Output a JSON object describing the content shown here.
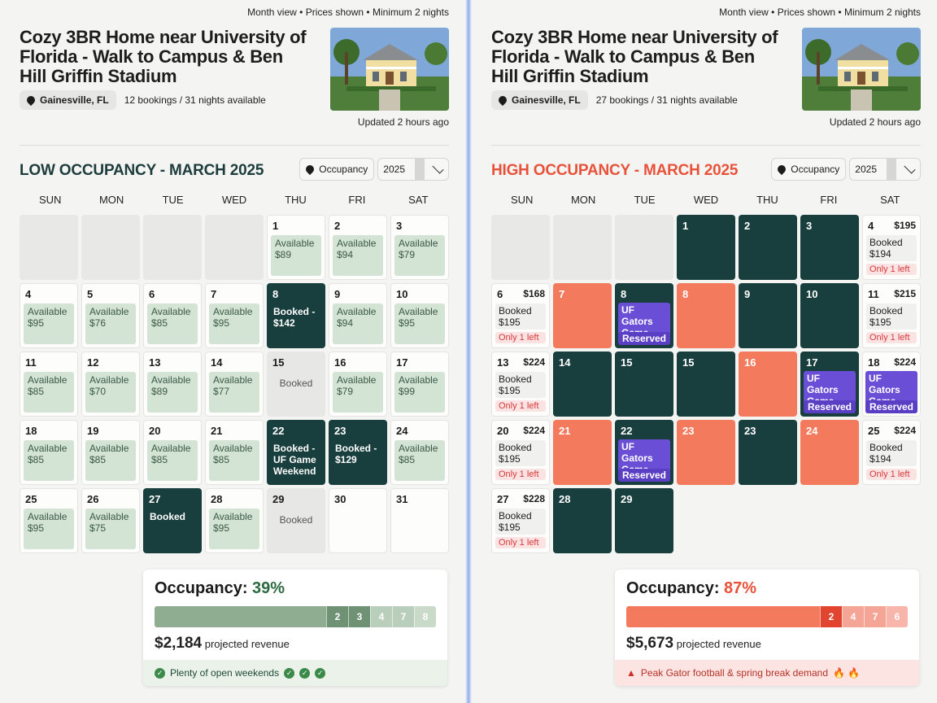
{
  "meta": {
    "view": "Month view",
    "prices": "Prices shown",
    "minimum": "Minimum 2 nights",
    "bullet": "•"
  },
  "listing": {
    "title": "Cozy 3BR Home near University of Florida - Walk to Campus & Ben Hill Griffin Stadium",
    "location": "Gainesville, FL",
    "updated": "Updated 2 hours ago"
  },
  "controls": {
    "occupancy_label": "Occupancy",
    "year": "2025"
  },
  "weekdays": [
    "SUN",
    "MON",
    "TUE",
    "WED",
    "THU",
    "FRI",
    "SAT"
  ],
  "left": {
    "bookings_summary": "12 bookings / 31 nights available",
    "section_title": "LOW OCCUPANCY - MARCH 2025",
    "cells": [
      {
        "kind": "empty"
      },
      {
        "kind": "empty"
      },
      {
        "kind": "empty"
      },
      {
        "kind": "empty"
      },
      {
        "kind": "avail",
        "day": "1",
        "label": "Available",
        "price": "$89"
      },
      {
        "kind": "avail",
        "day": "2",
        "label": "Available",
        "price": "$94"
      },
      {
        "kind": "avail",
        "day": "3",
        "label": "Available",
        "price": "$79"
      },
      {
        "kind": "avail",
        "day": "4",
        "label": "Available",
        "price": "$95"
      },
      {
        "kind": "avail",
        "day": "5",
        "label": "Available",
        "price": "$76"
      },
      {
        "kind": "avail",
        "day": "6",
        "label": "Available",
        "price": "$85"
      },
      {
        "kind": "avail",
        "day": "7",
        "label": "Available",
        "price": "$95"
      },
      {
        "kind": "booked",
        "day": "8",
        "text": "Booked - $142"
      },
      {
        "kind": "avail",
        "day": "9",
        "label": "Available",
        "price": "$94"
      },
      {
        "kind": "avail",
        "day": "10",
        "label": "Available",
        "price": "$95"
      },
      {
        "kind": "avail",
        "day": "11",
        "label": "Available",
        "price": "$85"
      },
      {
        "kind": "avail",
        "day": "12",
        "label": "Available",
        "price": "$70"
      },
      {
        "kind": "avail",
        "day": "13",
        "label": "Available",
        "price": "$89"
      },
      {
        "kind": "avail",
        "day": "14",
        "label": "Available",
        "price": "$77"
      },
      {
        "kind": "blocked",
        "day": "15",
        "text": "Booked"
      },
      {
        "kind": "avail",
        "day": "16",
        "label": "Available",
        "price": "$79"
      },
      {
        "kind": "avail",
        "day": "17",
        "label": "Available",
        "price": "$99"
      },
      {
        "kind": "avail",
        "day": "18",
        "label": "Available",
        "price": "$85"
      },
      {
        "kind": "avail",
        "day": "19",
        "label": "Available",
        "price": "$85"
      },
      {
        "kind": "avail",
        "day": "20",
        "label": "Available",
        "price": "$85"
      },
      {
        "kind": "avail",
        "day": "21",
        "label": "Available",
        "price": "$85"
      },
      {
        "kind": "booked",
        "day": "22",
        "text": "Booked - UF Game Weekend"
      },
      {
        "kind": "booked",
        "day": "23",
        "text": "Booked - $129"
      },
      {
        "kind": "avail",
        "day": "24",
        "label": "Available",
        "price": "$85"
      },
      {
        "kind": "avail",
        "day": "25",
        "label": "Available",
        "price": "$95"
      },
      {
        "kind": "avail",
        "day": "26",
        "label": "Available",
        "price": "$75"
      },
      {
        "kind": "booked",
        "day": "27",
        "text": "Booked"
      },
      {
        "kind": "avail",
        "day": "28",
        "label": "Available",
        "price": "$95"
      },
      {
        "kind": "blocked",
        "day": "29",
        "text": "Booked"
      },
      {
        "kind": "plain",
        "day": "30"
      },
      {
        "kind": "plain",
        "day": "31"
      }
    ],
    "summary": {
      "occupancy_label": "Occupancy:",
      "occupancy_value": "39%",
      "occupancy_fraction": 0.39,
      "bar_segments": [
        "2",
        "3",
        "4",
        "7",
        "8"
      ],
      "bar_fill_color": "#8fae91",
      "bar_segment_colors": [
        "#6f9275",
        "#6f9275",
        "#b9cfbb",
        "#b9cfbb",
        "#c9dac9"
      ],
      "revenue": "$2,184",
      "revenue_label": "projected revenue",
      "note": "Plenty of open weekends"
    }
  },
  "right": {
    "bookings_summary": "27 bookings / 31 nights available",
    "section_title": "HIGH OCCUPANCY - MARCH 2025",
    "cells": [
      {
        "kind": "empty"
      },
      {
        "kind": "empty"
      },
      {
        "kind": "empty"
      },
      {
        "kind": "dark",
        "day": "1"
      },
      {
        "kind": "dark",
        "day": "2"
      },
      {
        "kind": "dark",
        "day": "3"
      },
      {
        "kind": "scarce",
        "day": "4",
        "price": "$195",
        "label": "Booked",
        "sub": "$194",
        "warn": "Only 1 left"
      },
      {
        "kind": "scarce",
        "day": "6",
        "price": "$168",
        "label": "Booked",
        "sub": "$195",
        "warn": "Only 1 left"
      },
      {
        "kind": "coral",
        "day": "7"
      },
      {
        "kind": "event",
        "day": "8",
        "text": "UF Gators Game",
        "res": "Reserved"
      },
      {
        "kind": "coral",
        "day": "8"
      },
      {
        "kind": "dark",
        "day": "9"
      },
      {
        "kind": "dark",
        "day": "10"
      },
      {
        "kind": "scarce",
        "day": "11",
        "price": "$215",
        "label": "Booked",
        "sub": "$195",
        "warn": "Only 1 left"
      },
      {
        "kind": "scarce",
        "day": "13",
        "price": "$224",
        "label": "Booked",
        "sub": "$195",
        "warn": "Only 1 left"
      },
      {
        "kind": "dark",
        "day": "14"
      },
      {
        "kind": "dark",
        "day": "15"
      },
      {
        "kind": "dark",
        "day": "15"
      },
      {
        "kind": "coral",
        "day": "16"
      },
      {
        "kind": "event",
        "day": "17",
        "text": "UF Gators Game",
        "res": "Reserved"
      },
      {
        "kind": "scarce-event",
        "day": "18",
        "price": "$224",
        "text": "UF Gators Game",
        "res": "Reserved"
      },
      {
        "kind": "scarce",
        "day": "20",
        "price": "$224",
        "label": "Booked",
        "sub": "$195",
        "warn": "Only 1 left"
      },
      {
        "kind": "coral",
        "day": "21"
      },
      {
        "kind": "event",
        "day": "22",
        "text": "UF Gators Game",
        "res": "Reserved"
      },
      {
        "kind": "coral",
        "day": "23"
      },
      {
        "kind": "dark",
        "day": "23"
      },
      {
        "kind": "coral",
        "day": "24"
      },
      {
        "kind": "scarce",
        "day": "25",
        "price": "$224",
        "label": "Booked",
        "sub": "$194",
        "warn": "Only 1 left"
      },
      {
        "kind": "scarce",
        "day": "27",
        "price": "$228",
        "label": "Booked",
        "sub": "$195",
        "warn": "Only 1 left"
      },
      {
        "kind": "dark",
        "day": "28"
      },
      {
        "kind": "dark",
        "day": "29"
      }
    ],
    "summary": {
      "occupancy_label": "Occupancy:",
      "occupancy_value": "87%",
      "occupancy_fraction": 0.87,
      "bar_segments": [
        "2",
        "4",
        "7",
        "6"
      ],
      "bar_fill_color": "#f37a5d",
      "bar_segment_colors": [
        "#e1452f",
        "#f5a596",
        "#f5a596",
        "#f7b6a9"
      ],
      "revenue": "$5,673",
      "revenue_label": "projected revenue",
      "note": "Peak Gator football & spring break demand",
      "note_icon": "🔥 🔥"
    }
  },
  "colors": {
    "dark_cell": "#183e3e",
    "coral_cell": "#f37a5d",
    "event": "#6a4fd6",
    "avail": "#d3e3d4"
  }
}
